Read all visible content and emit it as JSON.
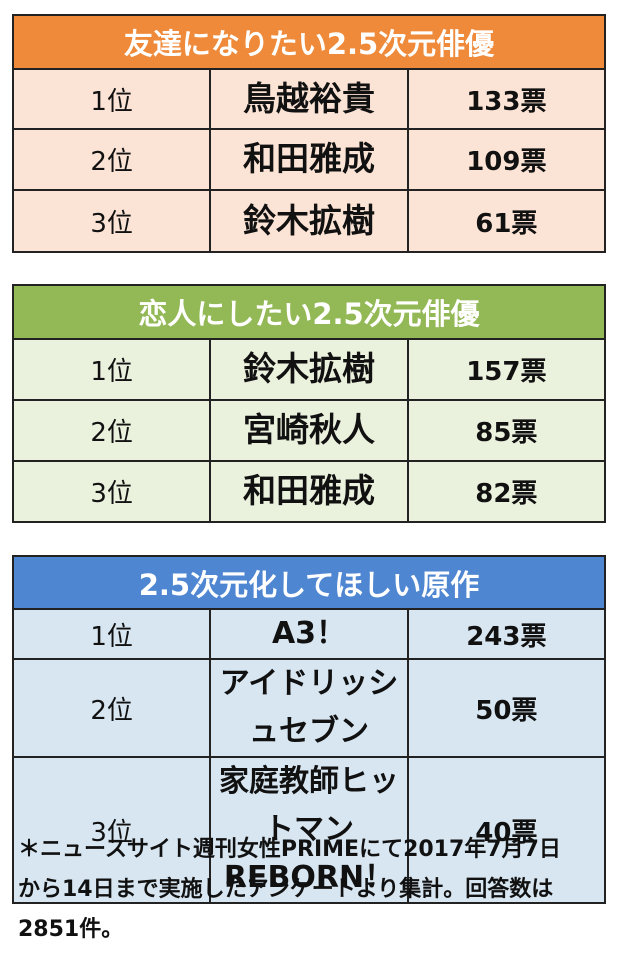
{
  "tables": [
    {
      "title": "友達になりたい2.5次元俳優",
      "rows": [
        [
          "1位",
          "鳥越裕貴",
          "133票"
        ],
        [
          "2位",
          "和田雅成",
          "109票"
        ],
        [
          "3位",
          "鈴木拡樹",
          "61票"
        ]
      ]
    },
    {
      "title": "恋人にしたい2.5次元俳優",
      "rows": [
        [
          "1位",
          "鈴木拡樹",
          "157票"
        ],
        [
          "2位",
          "宮崎秋人",
          "85票"
        ],
        [
          "3位",
          "和田雅成",
          "82票"
        ]
      ]
    },
    {
      "title": "2.5次元化してほしい原作",
      "rows": [
        [
          "1位",
          "A3！",
          "243票"
        ],
        [
          "2位",
          "アイドリッシュセブン",
          "50票"
        ],
        [
          "3位",
          "家庭教師ヒットマン\nREBORN！",
          "40票"
        ]
      ]
    }
  ],
  "footnote": "＊ニュースサイト週刊女性PRIMEにて2017年7月7日から14日まで実施したアンケートより集計。回答数は2851件。"
}
